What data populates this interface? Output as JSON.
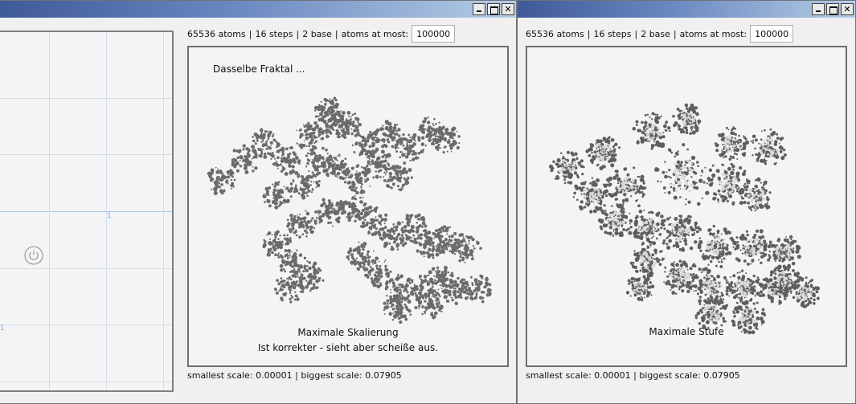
{
  "left_window": {
    "grid": {
      "axis_label_x": "1",
      "axis_label_y": "1"
    },
    "fractal_view": {
      "stats": {
        "atoms": "65536 atoms",
        "steps": "16 steps",
        "base": "2 base",
        "atoms_at_most_label": "atoms at most:"
      },
      "atoms_at_most_value": "100000",
      "caption_top": "Dasselbe Fraktal ...",
      "caption_bottom_1": "Maximale Skalierung",
      "caption_bottom_2": "Ist korrekter - sieht aber scheiße aus.",
      "scale_info": "smallest scale: 0.00001 | biggest scale: 0.07905",
      "fill_color": "#6b6b6b"
    }
  },
  "right_window": {
    "fractal_view": {
      "stats": {
        "atoms": "65536 atoms",
        "steps": "16 steps",
        "base": "2 base",
        "atoms_at_most_label": "atoms at most:"
      },
      "atoms_at_most_value": "100000",
      "caption_bottom_1": "Maximale Stufe",
      "scale_info": "smallest scale: 0.00001 | biggest scale: 0.07905",
      "fill_color": "#5e5e5e",
      "light_color": "#d8d8d8"
    }
  },
  "colors": {
    "titlebar_start": "#3f5a98",
    "titlebar_end": "#b5cde6",
    "panel_bg": "#f4f4f4",
    "grid_line": "#d4dcef",
    "axis_line": "#9ec8ea"
  }
}
